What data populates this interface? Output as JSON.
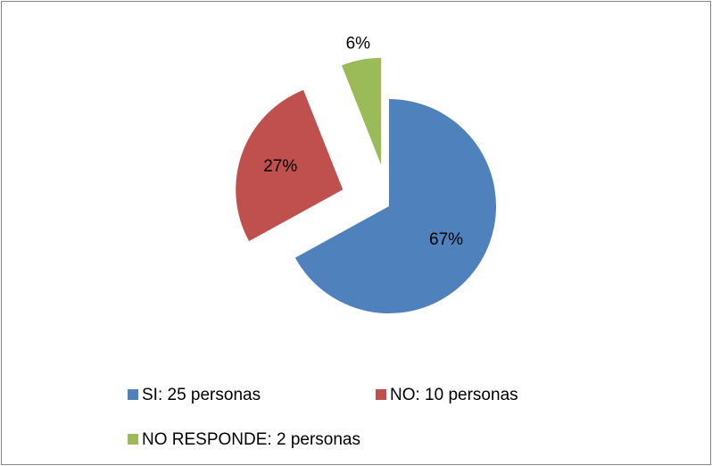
{
  "chart_data": {
    "type": "pie",
    "categories": [
      "SI: 25 personas",
      "NO: 10 personas",
      "NO RESPONDE: 2 personas"
    ],
    "values": [
      67,
      27,
      6
    ],
    "value_labels": [
      "67%",
      "27%",
      "6%"
    ],
    "colors": [
      "#4f81bd",
      "#c0504d",
      "#9bbb59"
    ],
    "legend": "bottom"
  }
}
